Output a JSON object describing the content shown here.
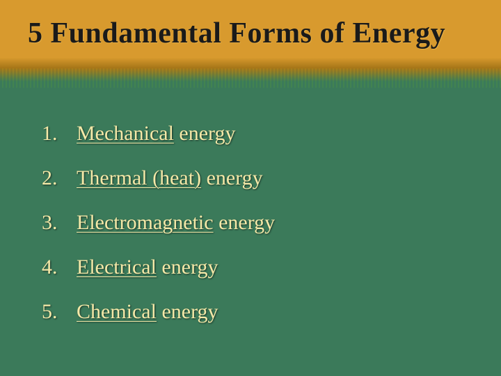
{
  "slide": {
    "title": "5 Fundamental Forms of Energy",
    "title_fontsize": 42,
    "title_color": "#1a1a1a",
    "background_color": "#3b7a5a",
    "header_gradient_top": "#d89a2e",
    "header_gradient_bottom": "#3b7a5a",
    "list_text_color": "#f5e9a8",
    "list_fontsize": 30,
    "items": [
      {
        "num": "1.",
        "underlined": "Mechanical",
        "plain": "energy"
      },
      {
        "num": "2.",
        "underlined": "Thermal (heat)",
        "plain": "energy"
      },
      {
        "num": "3.",
        "underlined": "Electromagnetic",
        "plain": "energy"
      },
      {
        "num": "4.",
        "underlined": "Electrical",
        "plain": "energy"
      },
      {
        "num": "5.",
        "underlined": "Chemical",
        "plain": "energy"
      }
    ]
  }
}
